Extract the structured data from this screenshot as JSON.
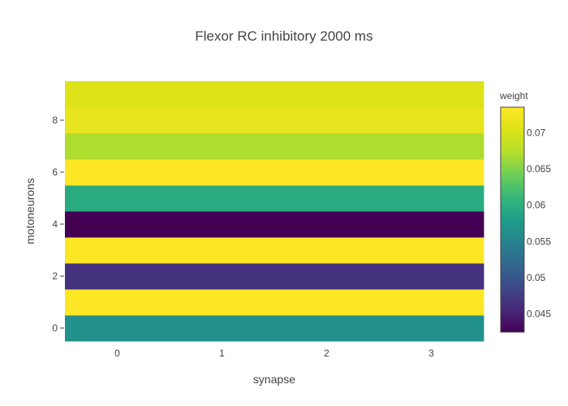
{
  "chart_data": {
    "type": "heatmap",
    "title": "Flexor RC inhibitory 2000 ms",
    "xlabel": "synapse",
    "ylabel": "motoneurons",
    "x": [
      0,
      1,
      2,
      3
    ],
    "y": [
      0,
      1,
      2,
      3,
      4,
      5,
      6,
      7,
      8,
      9
    ],
    "x_ticks": [
      0,
      1,
      2,
      3
    ],
    "y_ticks": [
      0,
      2,
      4,
      6,
      8
    ],
    "row_values": [
      0.0565,
      0.0735,
      0.0465,
      0.0735,
      0.0425,
      0.0595,
      0.0735,
      0.067,
      0.0715,
      0.0705
    ],
    "colorscale": "Viridis",
    "colorbar": {
      "title": "weight",
      "range": [
        0.0425,
        0.0735
      ],
      "ticks": [
        0.045,
        0.05,
        0.055,
        0.06,
        0.065,
        0.07
      ]
    },
    "grid": false
  }
}
